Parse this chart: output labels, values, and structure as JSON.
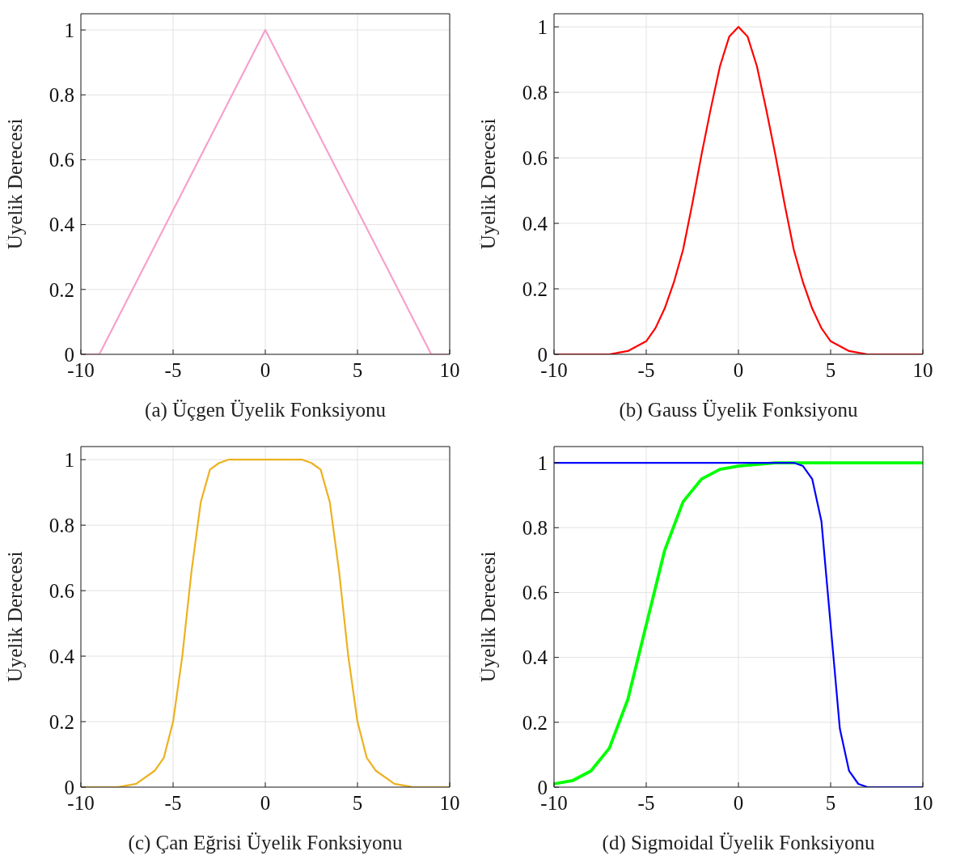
{
  "chart_data": [
    {
      "type": "line",
      "xlabel": "(a) Üçgen Üyelik Fonksiyonu",
      "ylabel": "Üyelik Derecesi",
      "xlim": [
        -10,
        10
      ],
      "xticks": [
        -10,
        -5,
        0,
        5,
        10
      ],
      "ylim": [
        0,
        1.05
      ],
      "yticks": [
        0,
        0.2,
        0.4,
        0.6,
        0.8,
        1
      ],
      "grid": true,
      "marker": "none",
      "line_style": "solid",
      "series": [
        {
          "color": "#f7a1cb",
          "x": [
            -10,
            -9,
            0,
            9,
            10
          ],
          "values": [
            0,
            0,
            1,
            0,
            0
          ]
        }
      ]
    },
    {
      "type": "line",
      "xlabel": "(b) Gauss Üyelik Fonksiyonu",
      "ylabel": "Üyelik Derecesi",
      "xlim": [
        -10,
        10
      ],
      "xticks": [
        -10,
        -5,
        0,
        5,
        10
      ],
      "ylim": [
        0,
        1.04
      ],
      "yticks": [
        0,
        0.2,
        0.4,
        0.6,
        0.8,
        1
      ],
      "grid": true,
      "marker": "none",
      "line_style": "solid",
      "series": [
        {
          "color": "#ff0000",
          "x": [
            -10,
            -8,
            -7,
            -6,
            -5,
            -4.5,
            -4,
            -3.5,
            -3,
            -2.5,
            -2,
            -1.5,
            -1,
            -0.5,
            0,
            0.5,
            1,
            1.5,
            2,
            2.5,
            3,
            3.5,
            4,
            4.5,
            5,
            6,
            7,
            8,
            10
          ],
          "values": [
            0,
            0,
            0,
            0.01,
            0.04,
            0.08,
            0.14,
            0.22,
            0.32,
            0.46,
            0.61,
            0.75,
            0.88,
            0.97,
            1,
            0.97,
            0.88,
            0.75,
            0.61,
            0.46,
            0.32,
            0.22,
            0.14,
            0.08,
            0.04,
            0.01,
            0,
            0,
            0
          ]
        }
      ]
    },
    {
      "type": "line",
      "xlabel": "(c) Çan Eğrisi Üyelik Fonksiyonu",
      "ylabel": "Üyelik Derecesi",
      "xlim": [
        -10,
        10
      ],
      "xticks": [
        -10,
        -5,
        0,
        5,
        10
      ],
      "ylim": [
        0,
        1.04
      ],
      "yticks": [
        0,
        0.2,
        0.4,
        0.6,
        0.8,
        1
      ],
      "grid": true,
      "marker": "none",
      "line_style": "solid",
      "series": [
        {
          "color": "#edb120",
          "x": [
            -10,
            -8,
            -7,
            -6,
            -5.5,
            -5,
            -4.5,
            -4,
            -3.5,
            -3,
            -2.5,
            -2,
            0,
            2,
            2.5,
            3,
            3.5,
            4,
            4.5,
            5,
            5.5,
            6,
            7,
            8,
            10
          ],
          "values": [
            0,
            0,
            0.01,
            0.05,
            0.09,
            0.2,
            0.4,
            0.66,
            0.87,
            0.97,
            0.99,
            1,
            1,
            1,
            0.99,
            0.97,
            0.87,
            0.66,
            0.4,
            0.2,
            0.09,
            0.05,
            0.01,
            0,
            0
          ]
        }
      ]
    },
    {
      "type": "line",
      "xlabel": "(d) Sigmoidal Üyelik Fonksiyonu",
      "ylabel": "Üyelik Derecesi",
      "xlim": [
        -10,
        10
      ],
      "xticks": [
        -10,
        -5,
        0,
        5,
        10
      ],
      "ylim": [
        0,
        1.05
      ],
      "yticks": [
        0,
        0.2,
        0.4,
        0.6,
        0.8,
        1
      ],
      "grid": true,
      "marker": "none",
      "line_style": "solid",
      "series": [
        {
          "color": "#00ff00",
          "x": [
            -10,
            -9,
            -8,
            -7,
            -6,
            -5,
            -4,
            -3,
            -2,
            -1,
            0,
            2,
            10
          ],
          "values": [
            0.01,
            0.02,
            0.05,
            0.12,
            0.27,
            0.5,
            0.73,
            0.88,
            0.95,
            0.98,
            0.99,
            1,
            1
          ]
        },
        {
          "color": "#0000ff",
          "x": [
            -10,
            3,
            3.5,
            4,
            4.5,
            5,
            5.5,
            6,
            6.5,
            7,
            8,
            10
          ],
          "values": [
            1,
            1,
            0.99,
            0.95,
            0.82,
            0.5,
            0.18,
            0.05,
            0.01,
            0,
            0,
            0
          ]
        }
      ]
    }
  ]
}
